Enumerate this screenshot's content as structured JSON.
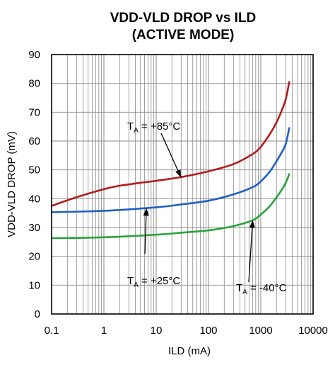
{
  "chart_data": {
    "type": "line",
    "title": [
      "VDD-VLD DROP vs ILD",
      "(ACTIVE MODE)"
    ],
    "xlabel": "ILD (mA)",
    "ylabel": "VDD-VLD DROP (mV)",
    "xscale": "log",
    "xlim": [
      0.1,
      10000
    ],
    "ylim": [
      0,
      90
    ],
    "x_ticks": [
      "0.1",
      "1",
      "10",
      "100",
      "1000",
      "10000"
    ],
    "y_ticks": [
      "0",
      "10",
      "20",
      "30",
      "40",
      "50",
      "60",
      "70",
      "80",
      "90"
    ],
    "grid": true,
    "series": [
      {
        "name": "TA = +85°C",
        "color": "#b01c1c",
        "x": [
          0.1,
          0.3,
          1,
          2,
          5,
          10,
          30,
          100,
          300,
          700,
          1000,
          1500,
          2000,
          2500,
          3000,
          3500
        ],
        "values": [
          37.5,
          40.5,
          43.3,
          44.5,
          45.5,
          46.2,
          47.5,
          49.5,
          52.0,
          55.5,
          58.0,
          62.5,
          66.5,
          70.5,
          74.5,
          80.5
        ]
      },
      {
        "name": "TA = +25°C",
        "color": "#1f5fc4",
        "x": [
          0.1,
          1,
          10,
          30,
          100,
          300,
          700,
          1000,
          1500,
          2000,
          2500,
          3000,
          3500
        ],
        "values": [
          35.3,
          35.8,
          37.0,
          38.0,
          39.3,
          41.5,
          44.0,
          46.0,
          49.5,
          53.0,
          56.0,
          59.0,
          64.5
        ]
      },
      {
        "name": "TA = -40°C",
        "color": "#2aa33b",
        "x": [
          0.1,
          1,
          10,
          30,
          100,
          300,
          700,
          1000,
          1500,
          2000,
          2500,
          3000,
          3500
        ],
        "values": [
          26.3,
          26.6,
          27.5,
          28.2,
          29.0,
          30.5,
          32.5,
          34.5,
          37.5,
          40.5,
          43.0,
          45.5,
          48.5
        ]
      }
    ],
    "annotations": [
      {
        "main": "T",
        "sub": "A",
        "rest": " = +85°C",
        "series": 0,
        "arrow_to_x": 30,
        "arrow_to_y": 47.3
      },
      {
        "main": "T",
        "sub": "A",
        "rest": " = +25°C",
        "series": 1,
        "arrow_to_x": 6.5,
        "arrow_to_y": 36.8
      },
      {
        "main": "T",
        "sub": "A",
        "rest": " = -40°C",
        "series": 2,
        "arrow_to_x": 700,
        "arrow_to_y": 32.6
      }
    ]
  }
}
